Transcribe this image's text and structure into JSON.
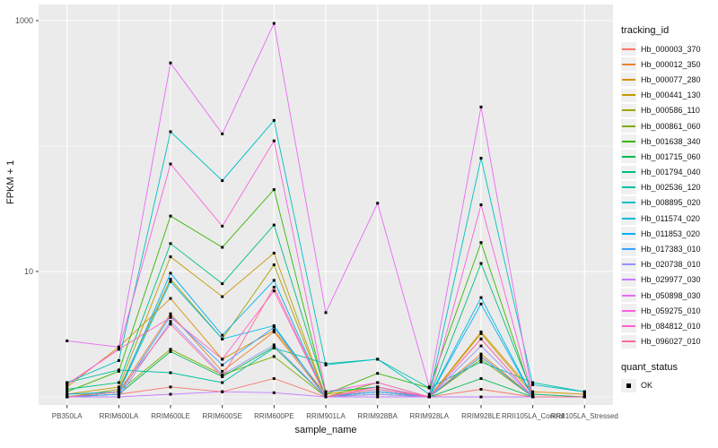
{
  "chart_data": {
    "type": "line",
    "title": "",
    "xlabel": "sample_name",
    "ylabel": "FPKM + 1",
    "y_scale": "log10",
    "y_tick_labels": [
      "1000",
      "10"
    ],
    "y_ticks": [
      1000,
      10
    ],
    "y_minor": [
      100,
      1
    ],
    "ylim": [
      1,
      1100
    ],
    "grid": true,
    "panel_bg": "#EBEBEB",
    "grid_color": "#FFFFFF",
    "point_color": "#000000",
    "point_shape": "square",
    "legend_position": "right",
    "categories": [
      "PB350LA",
      "RRIM600LA",
      "RRIM600LE",
      "RRIM600SE",
      "RRIM600PE",
      "RRIM901LA",
      "RRIM928BA",
      "RRIM928LA",
      "RRIM928LE",
      "RRII105LA_Control",
      "RRII105LA_Stressed"
    ],
    "series": [
      {
        "name": "Hb_000003_370",
        "color": "#F8766D",
        "values": [
          1.0,
          1.05,
          1.2,
          1.1,
          1.4,
          1.0,
          1.2,
          1.0,
          1.15,
          1.0,
          1.0
        ]
      },
      {
        "name": "Hb_000012_350",
        "color": "#EA8331",
        "values": [
          1.0,
          1.1,
          4.6,
          1.6,
          3.3,
          1.0,
          1.1,
          1.0,
          2.2,
          1.0,
          1.0
        ]
      },
      {
        "name": "Hb_000077_280",
        "color": "#D89000",
        "values": [
          1.2,
          2.5,
          6.1,
          2.0,
          3.4,
          1.05,
          1.2,
          1.0,
          3.3,
          1.1,
          1.05
        ]
      },
      {
        "name": "Hb_000441_130",
        "color": "#C09B00",
        "values": [
          1.05,
          1.2,
          13.1,
          6.3,
          14.0,
          1.0,
          1.1,
          1.0,
          3.2,
          1.05,
          1.0
        ]
      },
      {
        "name": "Hb_000586_110",
        "color": "#A3A500",
        "values": [
          1.0,
          1.15,
          8.7,
          2.9,
          11.3,
          1.0,
          1.05,
          1.0,
          2.1,
          1.0,
          1.0
        ]
      },
      {
        "name": "Hb_000861_060",
        "color": "#7CAE00",
        "values": [
          1.0,
          1.1,
          2.4,
          1.5,
          2.1,
          1.0,
          1.3,
          1.0,
          2.0,
          1.0,
          1.0
        ]
      },
      {
        "name": "Hb_001638_340",
        "color": "#39B600",
        "values": [
          1.1,
          1.6,
          27.7,
          15.6,
          45.0,
          1.05,
          1.54,
          1.18,
          17.0,
          1.0,
          1.0
        ]
      },
      {
        "name": "Hb_001715_060",
        "color": "#00BB4E",
        "values": [
          1.0,
          1.05,
          2.3,
          1.45,
          2.5,
          1.0,
          1.1,
          1.0,
          1.4,
          1.0,
          1.0
        ]
      },
      {
        "name": "Hb_001794_040",
        "color": "#00BF7D",
        "values": [
          1.15,
          1.3,
          16.7,
          8.0,
          23.5,
          1.1,
          1.2,
          1.0,
          11.6,
          1.05,
          1.0
        ]
      },
      {
        "name": "Hb_002536_120",
        "color": "#00C1A3",
        "values": [
          1.3,
          1.64,
          1.56,
          1.3,
          2.45,
          1.84,
          2.0,
          1.18,
          1.9,
          1.3,
          1.1
        ]
      },
      {
        "name": "Hb_008895_020",
        "color": "#00BFC4",
        "values": [
          1.3,
          1.95,
          130,
          53,
          160,
          1.8,
          2.0,
          1.05,
          80,
          1.25,
          1.1
        ]
      },
      {
        "name": "Hb_011574_020",
        "color": "#00BAE0",
        "values": [
          1.05,
          1.1,
          8.3,
          2.9,
          3.7,
          1.0,
          1.1,
          1.0,
          6.2,
          1.0,
          1.0
        ]
      },
      {
        "name": "Hb_011853_020",
        "color": "#00B0F6",
        "values": [
          1.0,
          1.1,
          9.7,
          3.1,
          8.5,
          1.0,
          1.15,
          1.0,
          5.5,
          1.0,
          1.0
        ]
      },
      {
        "name": "Hb_017383_010",
        "color": "#35A2FF",
        "values": [
          1.0,
          1.05,
          4.4,
          1.8,
          3.6,
          1.0,
          1.1,
          1.0,
          2.1,
          1.0,
          1.0
        ]
      },
      {
        "name": "Hb_020738_010",
        "color": "#9590FF",
        "values": [
          1.0,
          1.0,
          4.0,
          1.5,
          2.6,
          1.0,
          1.05,
          1.0,
          2.55,
          1.0,
          1.0
        ]
      },
      {
        "name": "Hb_029977_030",
        "color": "#C77CFF",
        "values": [
          1.0,
          1.0,
          1.05,
          1.1,
          1.08,
          1.0,
          1.0,
          1.0,
          1.0,
          1.0,
          1.0
        ]
      },
      {
        "name": "Hb_050898_030",
        "color": "#E76BF3",
        "values": [
          2.8,
          2.5,
          460,
          125,
          950,
          4.7,
          35,
          1.2,
          205,
          1.0,
          1.0
        ]
      },
      {
        "name": "Hb_059275_010",
        "color": "#FA62DB",
        "values": [
          1.26,
          2.4,
          72,
          23,
          110,
          1.1,
          1.3,
          1.0,
          34,
          1.0,
          1.0
        ]
      },
      {
        "name": "Hb_084812_010",
        "color": "#FF61CC",
        "values": [
          1.26,
          2.4,
          4.3,
          2.0,
          7.0,
          1.0,
          1.2,
          1.0,
          2.9,
          1.0,
          1.0
        ]
      },
      {
        "name": "Hb_096027_010",
        "color": "#FF6A98",
        "values": [
          1.0,
          1.1,
          3.8,
          1.45,
          7.5,
          1.0,
          1.15,
          1.0,
          2.9,
          1.0,
          1.0
        ]
      }
    ]
  },
  "legend": {
    "tracking_title": "tracking_id",
    "quant_title": "quant_status",
    "quant_items": [
      {
        "label": "OK"
      }
    ]
  },
  "axes": {
    "tick_color": "#333333",
    "tick_label_color": "#4D4D4D"
  }
}
